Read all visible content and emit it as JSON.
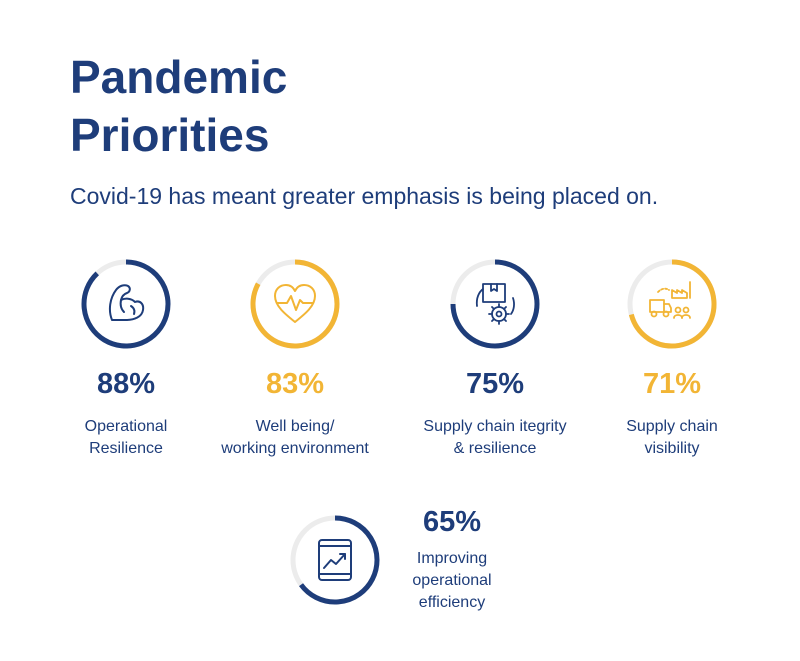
{
  "header": {
    "title_line1": "Pandemic",
    "title_line2": "Priorities",
    "subtitle": "Covid-19 has meant greater emphasis is being placed on."
  },
  "colors": {
    "navy": "#1e3d7a",
    "gold": "#f2b535",
    "track": "#ececec"
  },
  "chart_data": {
    "type": "donut-kpi",
    "title": "Pandemic Priorities",
    "unit": "%",
    "items": [
      {
        "value": 88,
        "display": "88%",
        "label_lines": [
          "Operational",
          "Resilience"
        ],
        "color": "#1e3d7a",
        "icon": "flexed-arm-icon"
      },
      {
        "value": 83,
        "display": "83%",
        "label_lines": [
          "Well being/",
          "working environment"
        ],
        "color": "#f2b535",
        "icon": "heartbeat-icon"
      },
      {
        "value": 75,
        "display": "75%",
        "label_lines": [
          "Supply chain itegrity",
          "& resilience"
        ],
        "color": "#1e3d7a",
        "icon": "package-gear-icon"
      },
      {
        "value": 71,
        "display": "71%",
        "label_lines": [
          "Supply chain",
          "visibility"
        ],
        "color": "#f2b535",
        "icon": "truck-factory-icon"
      },
      {
        "value": 65,
        "display": "65%",
        "label_lines": [
          "Improving",
          "operational",
          "efficiency"
        ],
        "color": "#1e3d7a",
        "icon": "tablet-chart-icon"
      }
    ]
  }
}
